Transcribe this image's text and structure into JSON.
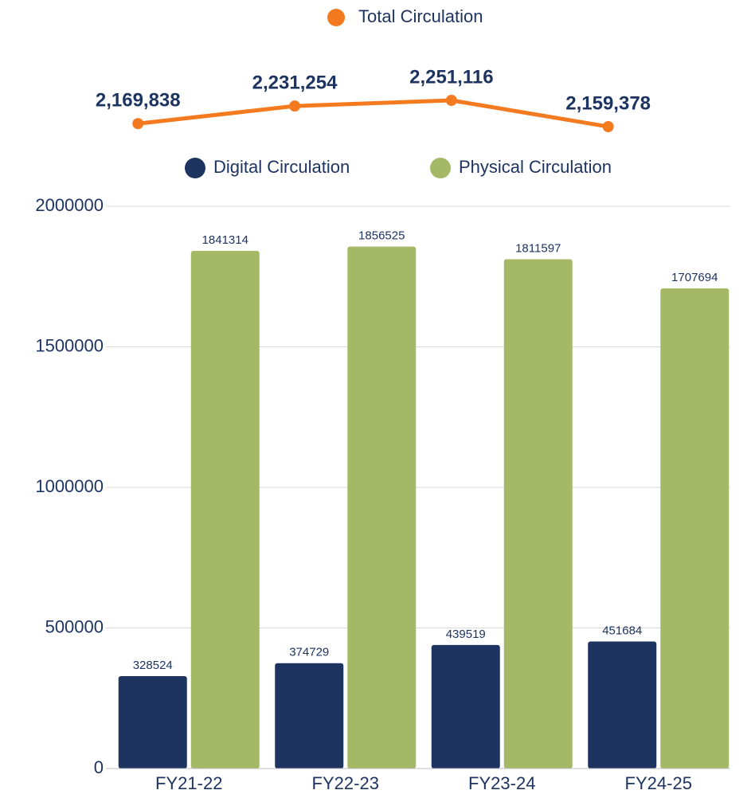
{
  "chart_data": [
    {
      "type": "line",
      "series": [
        {
          "name": "Total Circulation",
          "color": "#f47a20",
          "values": [
            2169838,
            2231254,
            2251116,
            2159378
          ],
          "value_labels": [
            "2,169,838",
            "2,231,254",
            "2,251,116",
            "2,159,378"
          ]
        }
      ]
    },
    {
      "type": "bar",
      "categories": [
        "FY21-22",
        "FY22-23",
        "FY23-24",
        "FY24-25"
      ],
      "series": [
        {
          "name": "Digital Circulation",
          "color": "#1d3461",
          "values": [
            328524,
            374729,
            439519,
            451684
          ]
        },
        {
          "name": "Physical Circulation",
          "color": "#a5b865",
          "values": [
            1841314,
            1856525,
            1811597,
            1707694
          ]
        }
      ],
      "ylim": [
        0,
        2000000
      ],
      "yticks": [
        0,
        500000,
        1000000,
        1500000,
        2000000
      ],
      "grid": true
    }
  ]
}
